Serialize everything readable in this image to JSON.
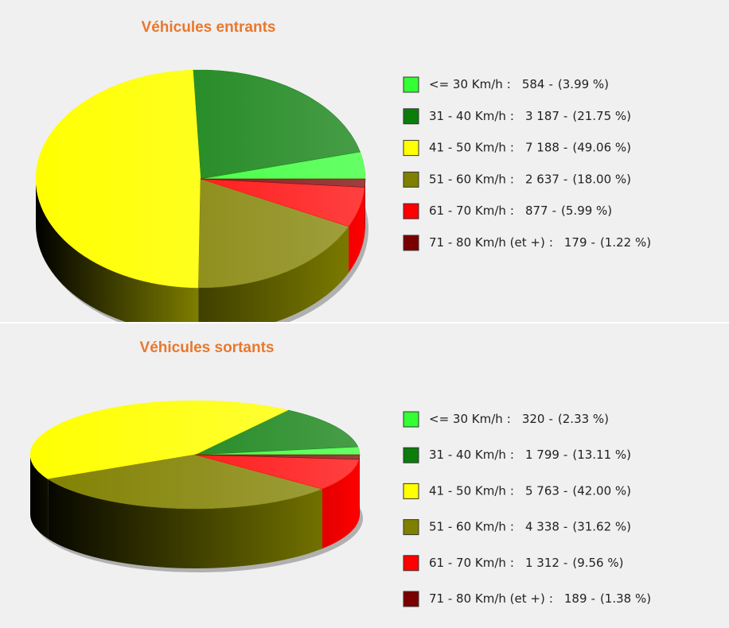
{
  "chart_data": [
    {
      "type": "pie",
      "title": "Véhicules entrants",
      "categories": [
        "<= 30 Km/h",
        "31 - 40 Km/h",
        "41 - 50 Km/h",
        "51 - 60 Km/h",
        "61 - 70 Km/h",
        "71 - 80 Km/h (et +)"
      ],
      "values": [
        584,
        3187,
        7188,
        2637,
        877,
        179
      ],
      "value_labels": [
        "584",
        "3 187",
        "7 188",
        "2 637",
        "877",
        "179"
      ],
      "percentages": [
        3.99,
        21.75,
        49.06,
        18,
        5.99,
        1.22
      ],
      "percentage_labels": [
        "(3.99 %)",
        "(21.75 %)",
        "(49.06 %)",
        "(18.00 %)",
        "(5.99 %)",
        "(1.22 %)"
      ],
      "colors": [
        "#33ff33",
        "#0b7d0b",
        "#ffff00",
        "#808000",
        "#ff0000",
        "#7a0000"
      ],
      "name_separator": ":",
      "value_separator": "-"
    },
    {
      "type": "pie",
      "title": "Véhicules sortants",
      "categories": [
        "<= 30 Km/h",
        "31 - 40 Km/h",
        "41 - 50 Km/h",
        "51 - 60 Km/h",
        "61 - 70 Km/h",
        "71 - 80 Km/h (et +)"
      ],
      "values": [
        320,
        1799,
        5763,
        4338,
        1312,
        189
      ],
      "value_labels": [
        "320",
        "1 799",
        "5 763",
        "4 338",
        "1 312",
        "189"
      ],
      "percentages": [
        2.33,
        13.11,
        42,
        31.62,
        9.56,
        1.38
      ],
      "percentage_labels": [
        "(2.33 %)",
        "(13.11 %)",
        "(42.00 %)",
        "(31.62 %)",
        "(9.56 %)",
        "(1.38 %)"
      ],
      "colors": [
        "#33ff33",
        "#0b7d0b",
        "#ffff00",
        "#808000",
        "#ff0000",
        "#7a0000"
      ],
      "name_separator": ":",
      "value_separator": "-"
    }
  ]
}
